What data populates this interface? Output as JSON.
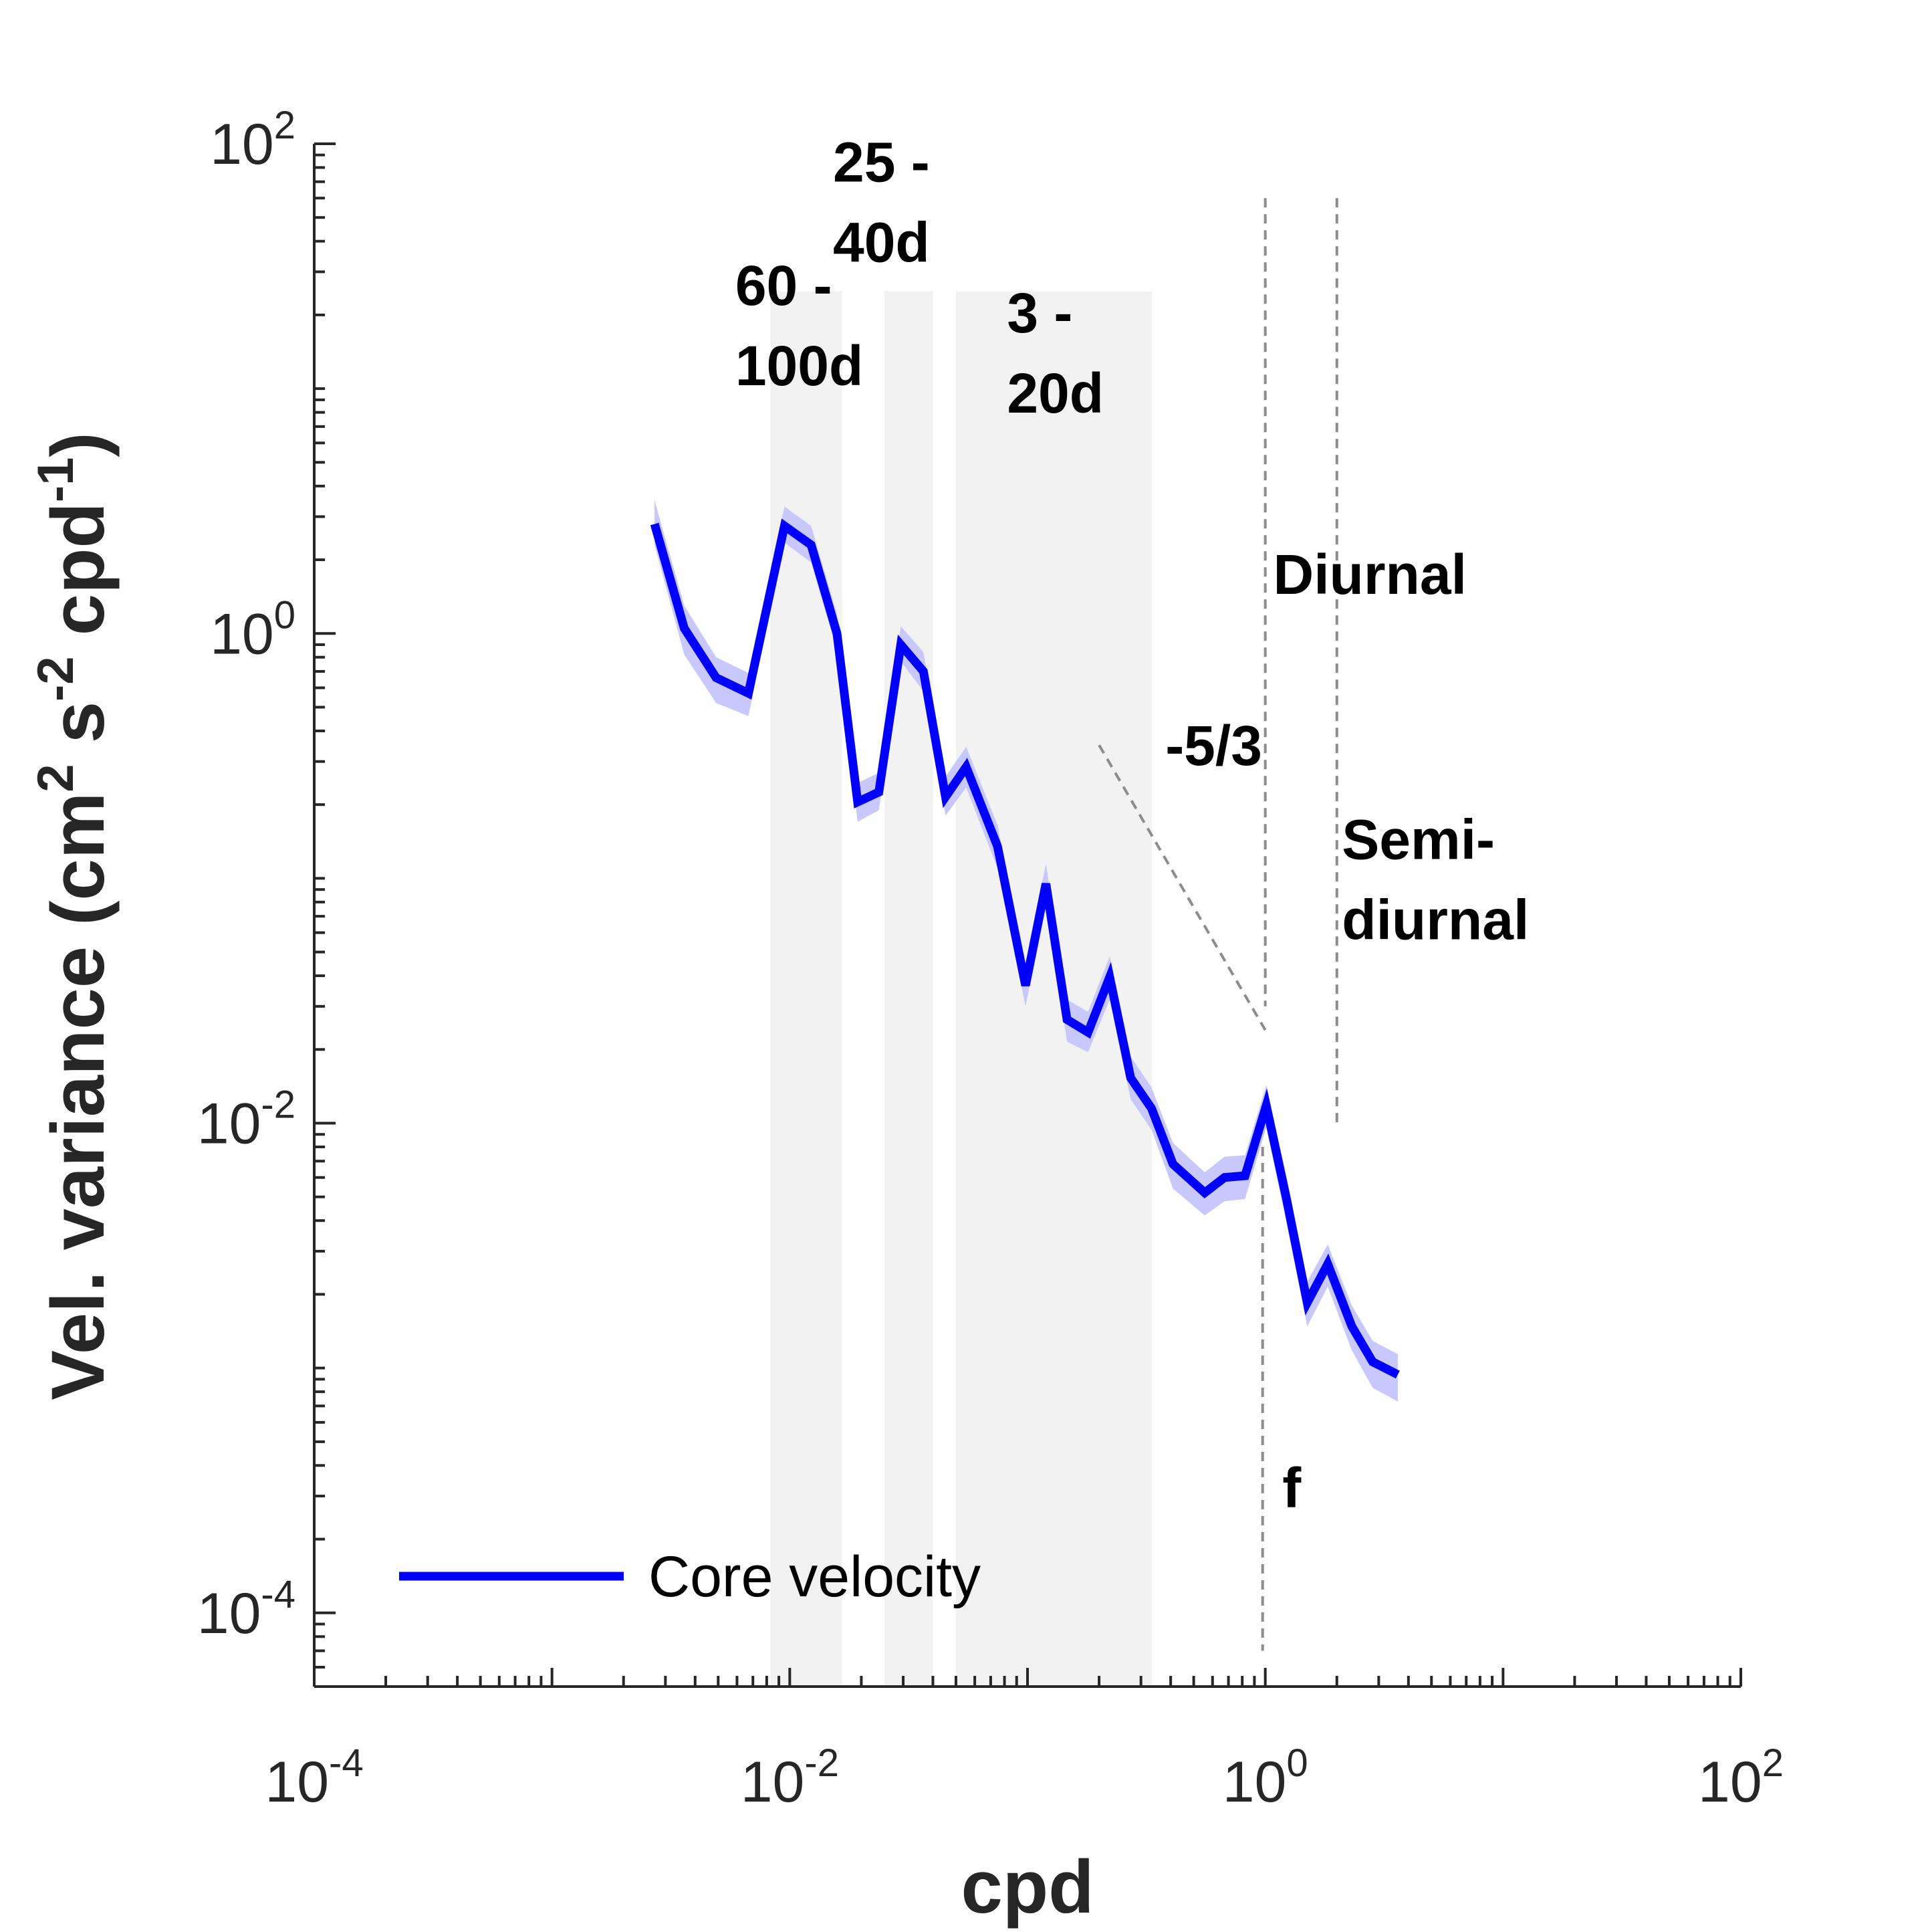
{
  "chart_data": {
    "type": "line",
    "xscale": "log",
    "yscale": "log",
    "xlim": [
      0.0001,
      100
    ],
    "ylim": [
      5e-05,
      100
    ],
    "x_ticks": [
      {
        "base": "10",
        "exp": "-4",
        "value": 0.0001
      },
      {
        "base": "10",
        "exp": "-2",
        "value": 0.01
      },
      {
        "base": "10",
        "exp": "0",
        "value": 1
      },
      {
        "base": "10",
        "exp": "2",
        "value": 100
      }
    ],
    "y_ticks": [
      {
        "base": "10",
        "exp": "2",
        "value": 100
      },
      {
        "base": "10",
        "exp": "0",
        "value": 1
      },
      {
        "base": "10",
        "exp": "-2",
        "value": 0.01
      },
      {
        "base": "10",
        "exp": "-4",
        "value": 0.0001
      }
    ],
    "xlabel": "cpd",
    "ylabel": {
      "parts": [
        {
          "text": "Vel. variance (cm",
          "sup": false
        },
        {
          "text": "2",
          "sup": true
        },
        {
          "text": " s",
          "sup": false
        },
        {
          "text": "-2",
          "sup": true
        },
        {
          "text": " cpd",
          "sup": false
        },
        {
          "text": "-1",
          "sup": true
        },
        {
          "text": ")",
          "sup": false
        }
      ]
    },
    "grid": false,
    "legend": {
      "position": "bottom-left",
      "entries": [
        {
          "label": "Core velocity",
          "color": "#0000ff"
        }
      ]
    },
    "shaded_bands": [
      {
        "x_range": [
          0.0083,
          0.0166
        ],
        "lines": [
          "60 -",
          "100d"
        ],
        "label_x": 0.0059,
        "label_y_top": 22
      },
      {
        "x_range": [
          0.025,
          0.04
        ],
        "lines": [
          "25 -",
          "40d"
        ],
        "label_x": 0.0152,
        "label_y_top": 70
      },
      {
        "x_range": [
          0.05,
          0.333
        ],
        "lines": [
          "3 -",
          "20d"
        ],
        "label_x": 0.082,
        "label_y_top": 17
      }
    ],
    "band_color": "#f2f2f2",
    "vertical_lines": [
      {
        "x": 1.0,
        "y_range": [
          7e-05,
          60
        ],
        "gap": [
          0.008,
          0.03
        ]
      },
      {
        "x": 2.0,
        "y_range": [
          0.01,
          60
        ]
      }
    ],
    "slope_line": {
      "x": [
        0.2,
        1.0
      ],
      "y": [
        0.35,
        0.024
      ],
      "label": "-5/3",
      "label_x": 0.38,
      "label_y": 0.29
    },
    "annotations": [
      {
        "lines": [
          "Diurnal"
        ],
        "x": 1.08,
        "y_top": 1.45
      },
      {
        "lines": [
          "Semi-",
          "diurnal"
        ],
        "x": 2.1,
        "y_top": 0.12
      },
      {
        "lines": [
          "f"
        ],
        "x": 1.18,
        "y_top": 0.00027
      }
    ],
    "series": [
      {
        "name": "Core velocity",
        "color": "#0000ff",
        "band_color": "#c8c8ff",
        "x": [
          0.0027,
          0.0036,
          0.0049,
          0.0067,
          0.0095,
          0.0123,
          0.0158,
          0.0193,
          0.0237,
          0.0293,
          0.0365,
          0.0452,
          0.0552,
          0.0748,
          0.0981,
          0.1195,
          0.1466,
          0.1797,
          0.2216,
          0.2716,
          0.3322,
          0.4092,
          0.5563,
          0.674,
          0.8221,
          1.0094,
          1.2286,
          1.5012,
          1.8311,
          2.3115,
          2.8284,
          3.6077
        ],
        "y": [
          2.8,
          1.05,
          0.66,
          0.57,
          2.75,
          2.3,
          1.0,
          0.205,
          0.225,
          0.9,
          0.7,
          0.215,
          0.285,
          0.135,
          0.0365,
          0.095,
          0.0265,
          0.0235,
          0.0395,
          0.0153,
          0.0115,
          0.0068,
          0.0052,
          0.006,
          0.0061,
          0.0118,
          0.0049,
          0.00185,
          0.00266,
          0.00148,
          0.00106,
          0.00094
        ],
        "y_lower": [
          2.3,
          0.82,
          0.52,
          0.46,
          2.35,
          1.95,
          0.85,
          0.17,
          0.19,
          0.77,
          0.58,
          0.18,
          0.235,
          0.11,
          0.03,
          0.078,
          0.0215,
          0.0195,
          0.032,
          0.0125,
          0.0094,
          0.0054,
          0.0042,
          0.0048,
          0.0049,
          0.0096,
          0.0039,
          0.00148,
          0.00215,
          0.00118,
          0.00083,
          0.00073
        ],
        "y_upper": [
          3.5,
          1.3,
          0.8,
          0.69,
          3.3,
          2.75,
          1.2,
          0.245,
          0.27,
          1.07,
          0.84,
          0.26,
          0.345,
          0.165,
          0.044,
          0.115,
          0.032,
          0.0285,
          0.048,
          0.0187,
          0.014,
          0.0083,
          0.0063,
          0.0073,
          0.0074,
          0.0143,
          0.006,
          0.00225,
          0.0032,
          0.0018,
          0.00129,
          0.00114
        ]
      }
    ]
  }
}
